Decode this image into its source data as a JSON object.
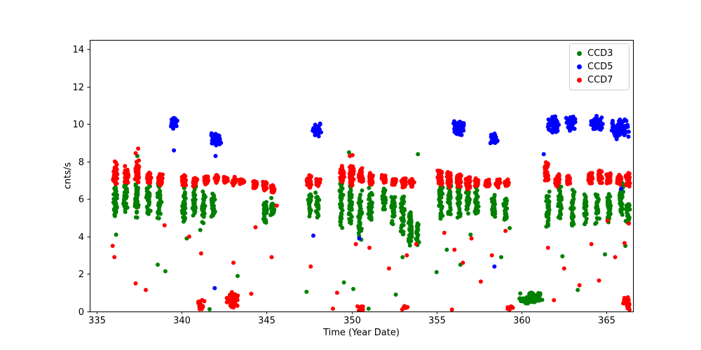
{
  "chart_data": {
    "type": "scatter",
    "title": "",
    "xlabel": "Time (Year Date)",
    "ylabel": "cnts/s",
    "xlim": [
      334.6,
      366.55
    ],
    "ylim": [
      0,
      14.5
    ],
    "xticks": [
      335,
      340,
      345,
      350,
      355,
      360,
      365
    ],
    "yticks": [
      0,
      2,
      4,
      6,
      8,
      10,
      12,
      14
    ],
    "grid": false,
    "legend_position": "upper right",
    "marker_radius_px": 3,
    "series": [
      {
        "name": "CCD3",
        "color": "#008000",
        "stripe_width": 0.26,
        "stripes": [
          [
            336.1,
            4.9,
            7.0,
            40
          ],
          [
            336.7,
            5.2,
            7.0,
            35
          ],
          [
            337.35,
            4.9,
            7.2,
            40
          ],
          [
            338.05,
            5.1,
            6.9,
            35
          ],
          [
            338.7,
            4.6,
            6.9,
            35
          ],
          [
            340.15,
            4.3,
            7.3,
            45
          ],
          [
            340.75,
            5.0,
            6.8,
            30
          ],
          [
            341.3,
            4.6,
            6.6,
            35
          ],
          [
            341.85,
            4.9,
            6.5,
            30
          ],
          [
            344.9,
            4.6,
            6.1,
            35
          ],
          [
            345.35,
            4.9,
            6.2,
            25
          ],
          [
            347.55,
            5.0,
            6.6,
            30
          ],
          [
            348.0,
            4.9,
            6.4,
            25
          ],
          [
            349.4,
            4.4,
            7.1,
            40
          ],
          [
            349.95,
            4.3,
            7.2,
            45
          ],
          [
            350.5,
            3.6,
            6.9,
            45
          ],
          [
            351.1,
            4.6,
            6.9,
            35
          ],
          [
            351.9,
            5.2,
            6.8,
            30
          ],
          [
            352.45,
            4.4,
            6.6,
            35
          ],
          [
            353.0,
            3.9,
            6.3,
            40
          ],
          [
            353.45,
            3.3,
            5.6,
            40
          ],
          [
            353.9,
            3.5,
            5.0,
            25
          ],
          [
            355.25,
            4.8,
            7.2,
            45
          ],
          [
            355.75,
            4.9,
            7.4,
            45
          ],
          [
            356.3,
            4.8,
            7.5,
            45
          ],
          [
            356.85,
            5.0,
            7.2,
            40
          ],
          [
            357.35,
            5.1,
            6.9,
            30
          ],
          [
            358.35,
            4.9,
            6.3,
            30
          ],
          [
            359.05,
            4.7,
            6.1,
            30
          ],
          [
            361.55,
            4.4,
            6.6,
            40
          ],
          [
            362.25,
            4.7,
            6.9,
            40
          ],
          [
            363.0,
            4.4,
            6.6,
            35
          ],
          [
            363.75,
            4.5,
            6.5,
            35
          ],
          [
            364.45,
            4.6,
            6.4,
            35
          ],
          [
            365.15,
            4.7,
            6.6,
            35
          ],
          [
            365.85,
            4.8,
            7.0,
            40
          ],
          [
            366.25,
            4.6,
            6.0,
            25
          ]
        ],
        "clusters": [
          [
            359.75,
            361.35,
            0.35,
            1.05,
            70
          ]
        ],
        "points": [
          [
            337.4,
            8.3
          ],
          [
            336.15,
            4.1
          ],
          [
            338.6,
            2.5
          ],
          [
            339.05,
            2.15
          ],
          [
            340.3,
            3.9
          ],
          [
            341.1,
            4.35
          ],
          [
            343.3,
            1.9
          ],
          [
            347.35,
            1.05
          ],
          [
            349.55,
            1.55
          ],
          [
            349.85,
            8.5
          ],
          [
            350.1,
            1.2
          ],
          [
            351.0,
            0.15
          ],
          [
            353.0,
            2.9
          ],
          [
            353.9,
            8.4
          ],
          [
            355.0,
            2.1
          ],
          [
            355.6,
            3.3
          ],
          [
            356.4,
            2.5
          ],
          [
            357.0,
            4.1
          ],
          [
            359.3,
            4.45
          ],
          [
            363.3,
            1.15
          ],
          [
            366.1,
            3.5
          ],
          [
            341.65,
            0.12
          ],
          [
            352.6,
            0.9
          ],
          [
            358.8,
            2.9
          ],
          [
            362.4,
            2.95
          ],
          [
            364.9,
            3.05
          ]
        ]
      },
      {
        "name": "CCD5",
        "color": "#0000ff",
        "stripes": [],
        "clusters": [
          [
            339.35,
            339.75,
            9.75,
            10.45,
            40
          ],
          [
            341.7,
            342.35,
            8.85,
            9.55,
            55
          ],
          [
            347.7,
            348.25,
            9.3,
            10.1,
            45
          ],
          [
            355.95,
            356.65,
            9.35,
            10.2,
            55
          ],
          [
            358.05,
            358.65,
            8.95,
            9.55,
            35
          ],
          [
            361.5,
            362.25,
            9.4,
            10.55,
            55
          ],
          [
            362.45,
            363.25,
            9.65,
            10.45,
            45
          ],
          [
            363.95,
            364.8,
            9.55,
            10.5,
            55
          ],
          [
            365.15,
            366.45,
            9.2,
            10.45,
            70
          ]
        ],
        "points": [
          [
            339.55,
            8.6
          ],
          [
            341.95,
            1.25
          ],
          [
            342.0,
            8.3
          ],
          [
            347.75,
            4.05
          ],
          [
            350.45,
            3.9
          ],
          [
            358.4,
            2.4
          ],
          [
            361.3,
            8.4
          ],
          [
            365.85,
            6.55
          ]
        ]
      },
      {
        "name": "CCD7",
        "color": "#ff0000",
        "stripe_width": 0.3,
        "stripes": [
          [
            336.1,
            6.7,
            8.1,
            45
          ],
          [
            336.75,
            6.8,
            7.8,
            40
          ],
          [
            337.4,
            6.8,
            8.1,
            45
          ],
          [
            338.1,
            6.8,
            7.6,
            40
          ],
          [
            338.75,
            6.7,
            7.4,
            35
          ],
          [
            340.15,
            6.6,
            7.4,
            40
          ],
          [
            340.8,
            6.6,
            7.2,
            35
          ],
          [
            341.45,
            6.7,
            7.3,
            35
          ],
          [
            342.05,
            6.8,
            7.3,
            35
          ],
          [
            342.6,
            6.8,
            7.2,
            35
          ],
          [
            343.1,
            6.7,
            7.2,
            35
          ],
          [
            343.55,
            6.8,
            7.1,
            25
          ],
          [
            344.3,
            6.5,
            7.1,
            30
          ],
          [
            344.9,
            6.4,
            7.0,
            25
          ],
          [
            345.35,
            6.3,
            6.9,
            25
          ],
          [
            347.5,
            6.5,
            7.3,
            40
          ],
          [
            348.05,
            6.6,
            7.2,
            35
          ],
          [
            349.45,
            6.8,
            7.8,
            40
          ],
          [
            350.0,
            6.7,
            8.0,
            45
          ],
          [
            350.55,
            6.8,
            7.7,
            45
          ],
          [
            351.15,
            6.7,
            7.4,
            35
          ],
          [
            351.9,
            6.8,
            7.3,
            30
          ],
          [
            352.5,
            6.7,
            7.2,
            35
          ],
          [
            353.05,
            6.6,
            7.2,
            35
          ],
          [
            353.55,
            6.6,
            7.1,
            30
          ],
          [
            355.2,
            6.7,
            7.6,
            45
          ],
          [
            355.75,
            6.6,
            7.5,
            45
          ],
          [
            356.3,
            6.6,
            7.4,
            45
          ],
          [
            356.85,
            6.5,
            7.3,
            40
          ],
          [
            357.35,
            6.6,
            7.2,
            35
          ],
          [
            358.0,
            6.6,
            7.1,
            30
          ],
          [
            358.6,
            6.5,
            7.1,
            35
          ],
          [
            359.15,
            6.6,
            7.1,
            30
          ],
          [
            361.45,
            6.8,
            8.0,
            40
          ],
          [
            362.1,
            6.6,
            7.4,
            40
          ],
          [
            362.75,
            6.7,
            7.3,
            35
          ],
          [
            364.05,
            6.7,
            7.5,
            40
          ],
          [
            364.6,
            6.8,
            7.6,
            40
          ],
          [
            365.1,
            6.8,
            7.5,
            35
          ],
          [
            365.75,
            6.7,
            7.4,
            40
          ],
          [
            366.25,
            6.6,
            7.5,
            35
          ]
        ],
        "clusters": [
          [
            340.9,
            341.35,
            0.0,
            0.65,
            18
          ],
          [
            342.55,
            343.4,
            0.15,
            1.15,
            40
          ],
          [
            350.3,
            350.75,
            0.0,
            0.4,
            14
          ],
          [
            352.95,
            353.35,
            0.05,
            0.35,
            10
          ],
          [
            359.15,
            359.5,
            0.05,
            0.3,
            8
          ],
          [
            365.95,
            366.45,
            0.0,
            0.85,
            25
          ]
        ],
        "points": [
          [
            335.95,
            3.5
          ],
          [
            336.05,
            2.9
          ],
          [
            337.3,
            1.5
          ],
          [
            337.9,
            1.15
          ],
          [
            339.0,
            4.6
          ],
          [
            340.45,
            4.0
          ],
          [
            341.15,
            3.1
          ],
          [
            343.05,
            2.6
          ],
          [
            344.35,
            4.5
          ],
          [
            345.3,
            2.9
          ],
          [
            345.6,
            5.65
          ],
          [
            347.6,
            2.4
          ],
          [
            349.15,
            1.0
          ],
          [
            350.25,
            3.6
          ],
          [
            351.05,
            3.4
          ],
          [
            352.2,
            2.3
          ],
          [
            353.25,
            3.0
          ],
          [
            353.8,
            3.6
          ],
          [
            355.45,
            4.2
          ],
          [
            356.05,
            3.3
          ],
          [
            356.55,
            2.6
          ],
          [
            357.05,
            3.9
          ],
          [
            357.6,
            1.6
          ],
          [
            358.25,
            3.0
          ],
          [
            359.05,
            4.3
          ],
          [
            361.55,
            3.4
          ],
          [
            362.5,
            2.3
          ],
          [
            363.4,
            1.4
          ],
          [
            364.1,
            3.6
          ],
          [
            364.55,
            1.65
          ],
          [
            365.05,
            4.85
          ],
          [
            365.5,
            2.9
          ],
          [
            366.05,
            3.65
          ],
          [
            366.3,
            4.7
          ],
          [
            337.45,
            8.7
          ],
          [
            337.3,
            8.45
          ],
          [
            349.9,
            8.3
          ],
          [
            350.05,
            8.35
          ],
          [
            344.1,
            0.95
          ],
          [
            348.9,
            0.15
          ],
          [
            355.9,
            0.1
          ],
          [
            361.9,
            0.6
          ]
        ]
      }
    ]
  }
}
